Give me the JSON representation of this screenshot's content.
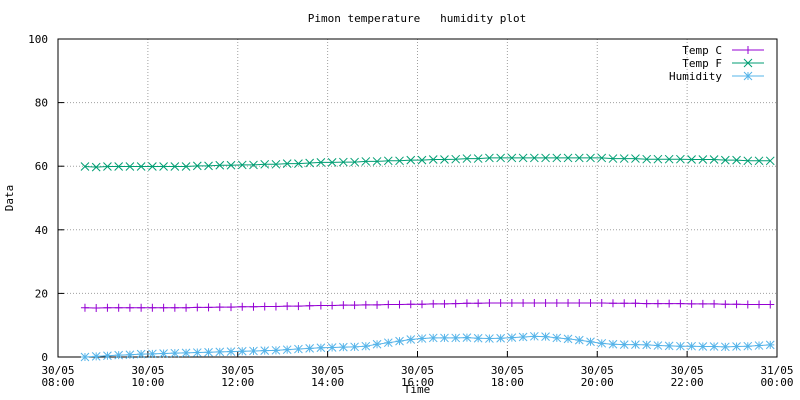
{
  "chart_data": {
    "type": "line",
    "title": "Pimon temperature   humidity plot",
    "x_label": "Time",
    "y_label": "Data",
    "x": [
      8.6,
      8.85,
      9.1,
      9.35,
      9.6,
      9.85,
      10.1,
      10.35,
      10.6,
      10.85,
      11.1,
      11.35,
      11.6,
      11.85,
      12.1,
      12.35,
      12.6,
      12.85,
      13.1,
      13.35,
      13.6,
      13.85,
      14.1,
      14.35,
      14.6,
      14.85,
      15.1,
      15.35,
      15.6,
      15.85,
      16.1,
      16.35,
      16.6,
      16.85,
      17.1,
      17.35,
      17.6,
      17.85,
      18.1,
      18.35,
      18.6,
      18.85,
      19.1,
      19.35,
      19.6,
      19.85,
      20.1,
      20.35,
      20.6,
      20.85,
      21.1,
      21.35,
      21.6,
      21.85,
      22.1,
      22.35,
      22.6,
      22.85,
      23.1,
      23.35,
      23.6,
      23.85
    ],
    "series": [
      {
        "name": "Temp C",
        "color": "#9400d3",
        "marker": "plus",
        "values": [
          15.5,
          15.4,
          15.5,
          15.5,
          15.5,
          15.5,
          15.5,
          15.5,
          15.5,
          15.5,
          15.6,
          15.6,
          15.7,
          15.7,
          15.8,
          15.8,
          15.9,
          15.9,
          16.0,
          16.0,
          16.1,
          16.2,
          16.2,
          16.3,
          16.3,
          16.4,
          16.4,
          16.5,
          16.5,
          16.6,
          16.6,
          16.7,
          16.7,
          16.8,
          16.9,
          16.9,
          17.0,
          17.0,
          17.0,
          17.0,
          17.0,
          17.0,
          17.0,
          17.0,
          17.0,
          17.0,
          17.0,
          16.9,
          16.9,
          16.9,
          16.8,
          16.8,
          16.8,
          16.8,
          16.7,
          16.7,
          16.7,
          16.6,
          16.6,
          16.5,
          16.5,
          16.5
        ]
      },
      {
        "name": "Temp F",
        "color": "#009e73",
        "marker": "cross",
        "values": [
          59.9,
          59.7,
          59.9,
          59.9,
          59.9,
          59.9,
          59.9,
          59.9,
          59.9,
          59.9,
          60.1,
          60.1,
          60.3,
          60.3,
          60.4,
          60.4,
          60.6,
          60.6,
          60.8,
          60.8,
          61.0,
          61.2,
          61.2,
          61.3,
          61.3,
          61.5,
          61.5,
          61.7,
          61.7,
          61.9,
          61.9,
          62.1,
          62.1,
          62.2,
          62.4,
          62.4,
          62.6,
          62.6,
          62.6,
          62.6,
          62.6,
          62.6,
          62.6,
          62.6,
          62.6,
          62.6,
          62.6,
          62.4,
          62.4,
          62.4,
          62.2,
          62.2,
          62.2,
          62.2,
          62.1,
          62.1,
          62.1,
          61.9,
          61.9,
          61.7,
          61.7,
          61.7
        ]
      },
      {
        "name": "Humidity",
        "color": "#56b4e9",
        "marker": "star",
        "values": [
          0.0,
          0.2,
          0.4,
          0.6,
          0.7,
          0.9,
          1.0,
          1.1,
          1.2,
          1.3,
          1.4,
          1.5,
          1.6,
          1.7,
          1.8,
          1.9,
          2.0,
          2.1,
          2.3,
          2.5,
          2.7,
          2.9,
          3.0,
          3.1,
          3.2,
          3.4,
          4.0,
          4.5,
          5.0,
          5.5,
          5.8,
          6.0,
          6.0,
          6.0,
          6.1,
          5.9,
          5.8,
          5.9,
          6.1,
          6.3,
          6.5,
          6.4,
          6.0,
          5.7,
          5.3,
          4.8,
          4.3,
          4.0,
          3.9,
          3.9,
          3.8,
          3.6,
          3.5,
          3.4,
          3.4,
          3.3,
          3.3,
          3.2,
          3.3,
          3.4,
          3.6,
          3.8
        ]
      }
    ],
    "xlim": [
      8,
      24
    ],
    "xticks": [
      {
        "value": 8,
        "label": [
          "30/05",
          "08:00"
        ]
      },
      {
        "value": 10,
        "label": [
          "30/05",
          "10:00"
        ]
      },
      {
        "value": 12,
        "label": [
          "30/05",
          "12:00"
        ]
      },
      {
        "value": 14,
        "label": [
          "30/05",
          "14:00"
        ]
      },
      {
        "value": 16,
        "label": [
          "30/05",
          "16:00"
        ]
      },
      {
        "value": 18,
        "label": [
          "30/05",
          "18:00"
        ]
      },
      {
        "value": 20,
        "label": [
          "30/05",
          "20:00"
        ]
      },
      {
        "value": 22,
        "label": [
          "30/05",
          "22:00"
        ]
      },
      {
        "value": 24,
        "label": [
          "31/05",
          "00:00"
        ]
      }
    ],
    "ylim": [
      0,
      100
    ],
    "yticks": [
      0,
      20,
      40,
      60,
      80,
      100
    ],
    "grid": true,
    "legend": "top-right"
  }
}
